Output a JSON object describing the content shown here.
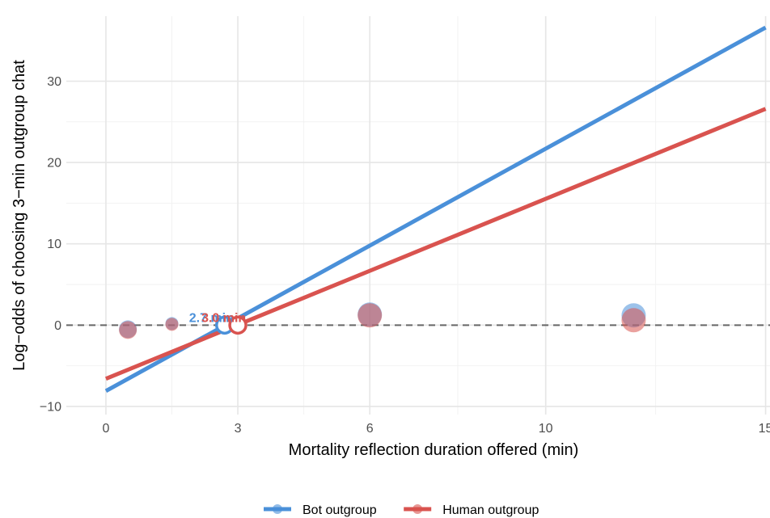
{
  "chart_data": {
    "type": "scatter",
    "xlabel": "Mortality reflection duration offered (min)",
    "ylabel": "Log−odds of choosing 3−min outgroup chat",
    "xlim": [
      -0.9,
      15.1
    ],
    "ylim": [
      -11,
      38
    ],
    "x_ticks": [
      0,
      3,
      6,
      10,
      15
    ],
    "y_ticks": [
      -10,
      0,
      10,
      20,
      30
    ],
    "reference_line": {
      "y": 0,
      "style": "dashed"
    },
    "grid": true,
    "legend_position": "bottom",
    "series": [
      {
        "name": "Bot outgroup",
        "color": "#4A90D9",
        "fit_line": {
          "x": [
            0,
            15
          ],
          "y": [
            -8.1,
            36.6
          ]
        },
        "points": [
          {
            "x": 0.5,
            "y": -0.5
          },
          {
            "x": 1.5,
            "y": 0.2
          },
          {
            "x": 6,
            "y": 1.3
          },
          {
            "x": 12,
            "y": 1.2
          }
        ],
        "crossing": {
          "x": 2.7,
          "y": 0,
          "label": "2.7 min"
        }
      },
      {
        "name": "Human outgroup",
        "color": "#D9534F",
        "fit_line": {
          "x": [
            0,
            15
          ],
          "y": [
            -6.6,
            26.6
          ]
        },
        "points": [
          {
            "x": 0.5,
            "y": -0.6
          },
          {
            "x": 1.5,
            "y": 0.1
          },
          {
            "x": 6,
            "y": 1.2
          },
          {
            "x": 12,
            "y": 0.6
          }
        ],
        "crossing": {
          "x": 3.0,
          "y": 0,
          "label": "3.0 min"
        }
      }
    ]
  }
}
